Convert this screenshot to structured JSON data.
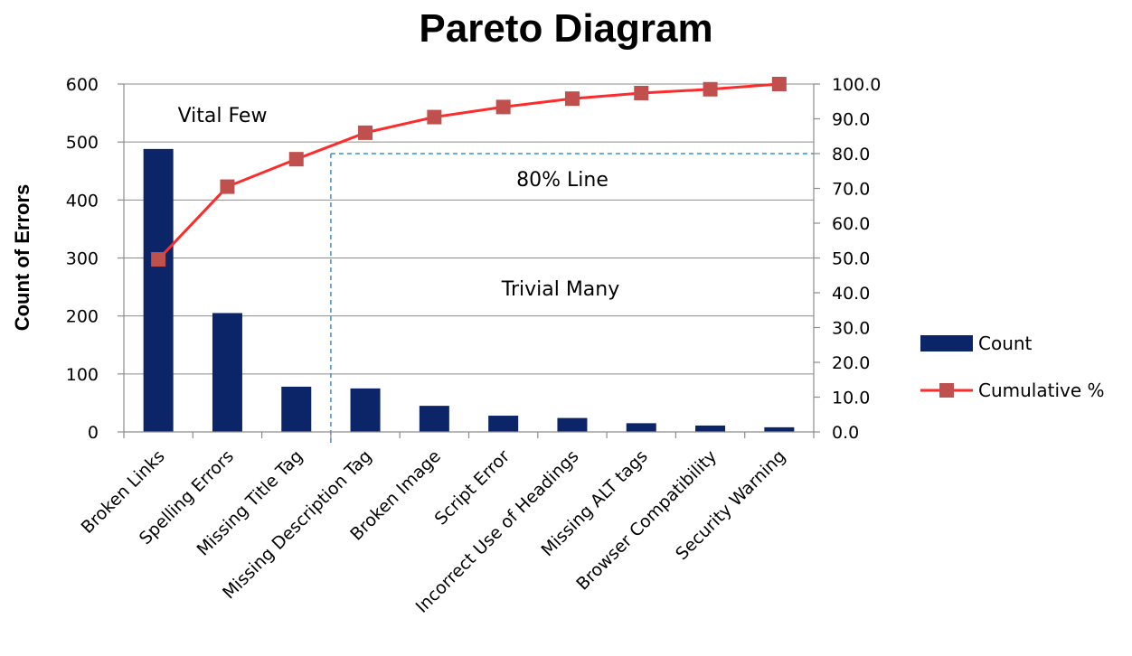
{
  "chart_data": {
    "type": "bar",
    "title": "Pareto Diagram",
    "ylabel": "Count of Errors",
    "ylabel_right": "",
    "categories": [
      "Broken Links",
      "Spelling Errors",
      "Missing Title Tag",
      "Missing Description Tag",
      "Broken Image",
      "Script Error",
      "Incorrect Use of Headings",
      "Missing ALT tags",
      "Browser Compatibility",
      "Security Warning"
    ],
    "series": [
      {
        "name": "Count",
        "type": "bar",
        "axis": "left",
        "color": "#0c2568",
        "values": [
          488,
          205,
          78,
          75,
          45,
          28,
          24,
          15,
          11,
          8
        ]
      },
      {
        "name": "Cumulative %",
        "type": "line",
        "axis": "right",
        "color": "#ff2a2a",
        "marker_color": "#c0504d",
        "values": [
          49.6,
          70.5,
          78.4,
          86.0,
          90.5,
          93.4,
          95.8,
          97.4,
          98.5,
          100.0
        ]
      }
    ],
    "ylim": [
      0,
      600
    ],
    "yticks": [
      "0",
      "100",
      "200",
      "300",
      "400",
      "500",
      "600"
    ],
    "ylim_right": [
      0,
      100
    ],
    "yticks_right": [
      "0.0",
      "10.0",
      "20.0",
      "30.0",
      "40.0",
      "50.0",
      "60.0",
      "70.0",
      "80.0",
      "90.0",
      "100.0"
    ],
    "grid": true,
    "legend": "right",
    "annotations": {
      "vital_few": "Vital Few",
      "eighty_line": "80% Line",
      "trivial_many": "Trivial Many"
    },
    "threshold": {
      "value": 80,
      "category_index": 2,
      "color": "#3a8fd9"
    }
  }
}
